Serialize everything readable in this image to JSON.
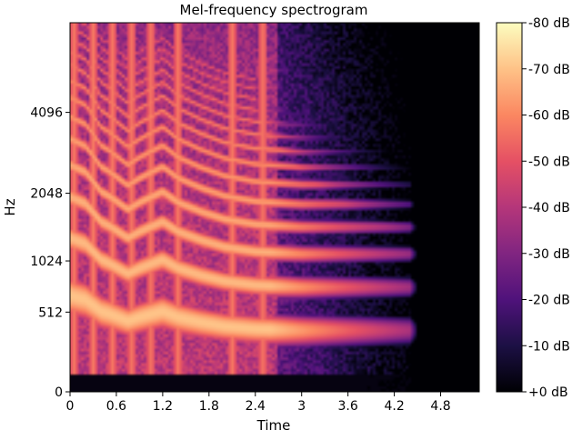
{
  "chart_data": {
    "type": "heatmap",
    "title": "Mel-frequency spectrogram",
    "xlabel": "Time",
    "ylabel": "Hz",
    "x_ticks": [
      "0",
      "0.6",
      "1.2",
      "1.8",
      "2.4",
      "3",
      "3.6",
      "4.2",
      "4.8"
    ],
    "x_tick_values": [
      0,
      0.6,
      1.2,
      1.8,
      2.4,
      3.0,
      3.6,
      4.2,
      4.8
    ],
    "x_range": [
      0,
      5.3
    ],
    "y_scale": "mel",
    "y_ticks": [
      "0",
      "512",
      "1024",
      "2048",
      "4096"
    ],
    "y_tick_values": [
      0,
      512,
      1024,
      2048,
      4096
    ],
    "y_range_hz": [
      0,
      8192
    ],
    "colorbar": {
      "colormap": "magma",
      "range_db": [
        -80,
        0
      ],
      "tick_labels": [
        "+0 dB",
        "-10 dB",
        "-20 dB",
        "-30 dB",
        "-40 dB",
        "-50 dB",
        "-60 dB",
        "-70 dB",
        "-80 dB"
      ],
      "tick_values": [
        0,
        -10,
        -20,
        -30,
        -40,
        -50,
        -60,
        -70,
        -80
      ]
    },
    "background_color": "#000004",
    "harmonics": {
      "f0_contour": [
        {
          "t": 0.0,
          "hz": 660
        },
        {
          "t": 0.2,
          "hz": 620
        },
        {
          "t": 0.4,
          "hz": 520
        },
        {
          "t": 0.5,
          "hz": 500
        },
        {
          "t": 0.75,
          "hz": 440
        },
        {
          "t": 0.9,
          "hz": 470
        },
        {
          "t": 1.2,
          "hz": 520
        },
        {
          "t": 1.4,
          "hz": 470
        },
        {
          "t": 1.7,
          "hz": 430
        },
        {
          "t": 2.0,
          "hz": 400
        },
        {
          "t": 2.4,
          "hz": 380
        },
        {
          "t": 3.0,
          "hz": 370
        },
        {
          "t": 3.6,
          "hz": 370
        },
        {
          "t": 4.4,
          "hz": 370
        }
      ],
      "sustain_end_s": 4.4,
      "onsets_s": [
        0.05,
        0.3,
        0.55,
        0.8,
        1.05,
        1.4,
        2.1,
        2.5
      ],
      "max_harmonic": 14
    }
  }
}
